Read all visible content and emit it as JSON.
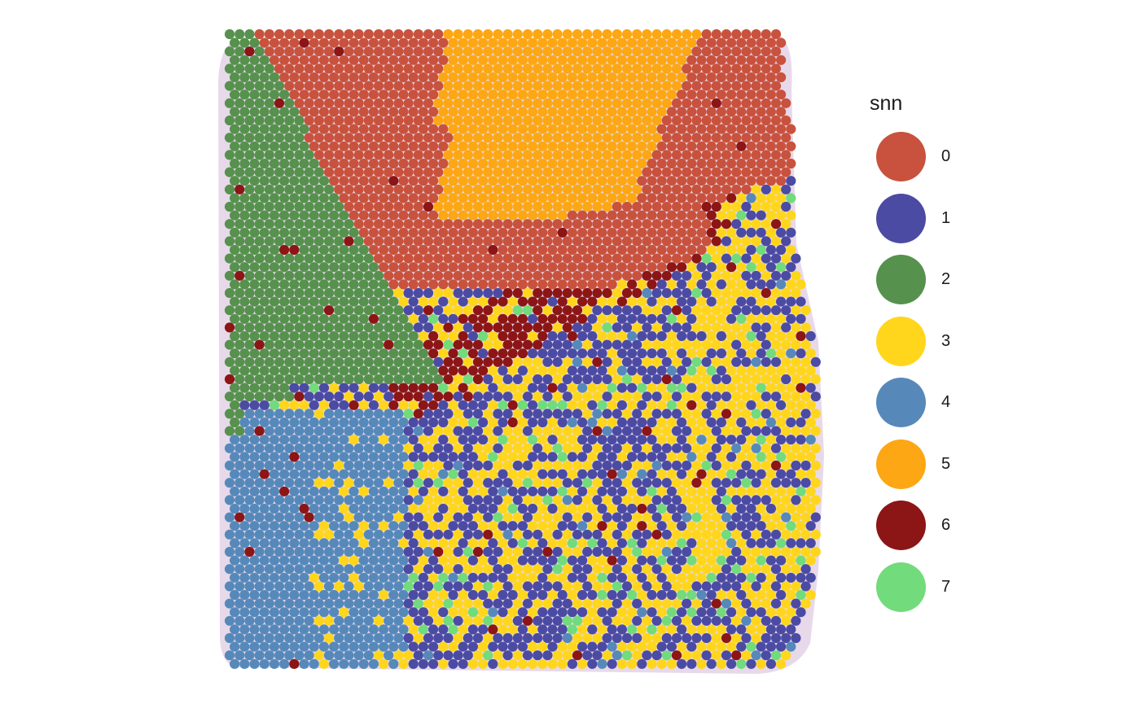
{
  "chart_data": {
    "type": "scatter",
    "description_kind": "spatial hexagonal spot map colored by cluster",
    "title": "",
    "xlabel": "",
    "ylabel": "",
    "axes_visible": false,
    "grid": false,
    "legend": {
      "title": "snn",
      "placement": "right",
      "entries": [
        {
          "label": "0",
          "color": "#C8523D"
        },
        {
          "label": "1",
          "color": "#4B4BA3"
        },
        {
          "label": "2",
          "color": "#56914D"
        },
        {
          "label": "3",
          "color": "#FFD61C"
        },
        {
          "label": "4",
          "color": "#5689BA"
        },
        {
          "label": "5",
          "color": "#FCA713"
        },
        {
          "label": "6",
          "color": "#8C1515"
        },
        {
          "label": "7",
          "color": "#72DB7B"
        }
      ]
    }
  }
}
